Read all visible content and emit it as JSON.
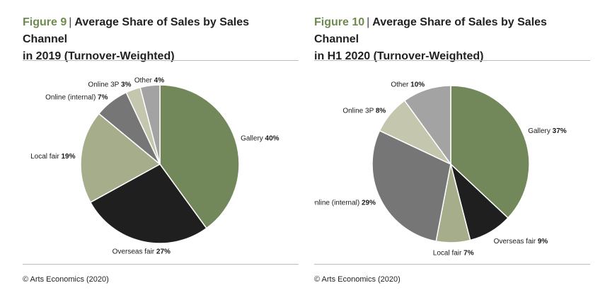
{
  "chart_data": [
    {
      "type": "pie",
      "figure_label": "Figure 9",
      "title": "Average Share of Sales by Sales Channel in 2019 (Turnover-Weighted)",
      "title_line1": "Average Share of Sales by Sales Channel",
      "title_line2": "in 2019 (Turnover-Weighted)",
      "source": "© Arts Economics (2020)",
      "slices": [
        {
          "label": "Gallery",
          "value": 40,
          "value_text": "40%",
          "color": "#72875a"
        },
        {
          "label": "Overseas fair",
          "value": 27,
          "value_text": "27%",
          "color": "#1f1f1f"
        },
        {
          "label": "Local fair",
          "value": 19,
          "value_text": "19%",
          "color": "#a6ad8b"
        },
        {
          "label": "Online (internal)",
          "value": 7,
          "value_text": "7%",
          "color": "#767676"
        },
        {
          "label": "Online 3P",
          "value": 3,
          "value_text": "3%",
          "color": "#c4c7ae"
        },
        {
          "label": "Other",
          "value": 4,
          "value_text": "4%",
          "color": "#a3a3a3"
        }
      ]
    },
    {
      "type": "pie",
      "figure_label": "Figure 10",
      "title": "Average Share of Sales by Sales Channel in H1 2020 (Turnover-Weighted)",
      "title_line1": "Average Share of Sales by Sales Channel",
      "title_line2": "in H1 2020 (Turnover-Weighted)",
      "source": "© Arts Economics (2020)",
      "slices": [
        {
          "label": "Gallery",
          "value": 37,
          "value_text": "37%",
          "color": "#72875a"
        },
        {
          "label": "Overseas fair",
          "value": 9,
          "value_text": "9%",
          "color": "#1f1f1f"
        },
        {
          "label": "Local fair",
          "value": 7,
          "value_text": "7%",
          "color": "#a6ad8b"
        },
        {
          "label": "Online (internal)",
          "value": 29,
          "value_text": "29%",
          "color": "#767676"
        },
        {
          "label": "Online 3P",
          "value": 8,
          "value_text": "8%",
          "color": "#c4c7ae"
        },
        {
          "label": "Other",
          "value": 10,
          "value_text": "10%",
          "color": "#a3a3a3"
        }
      ]
    }
  ]
}
